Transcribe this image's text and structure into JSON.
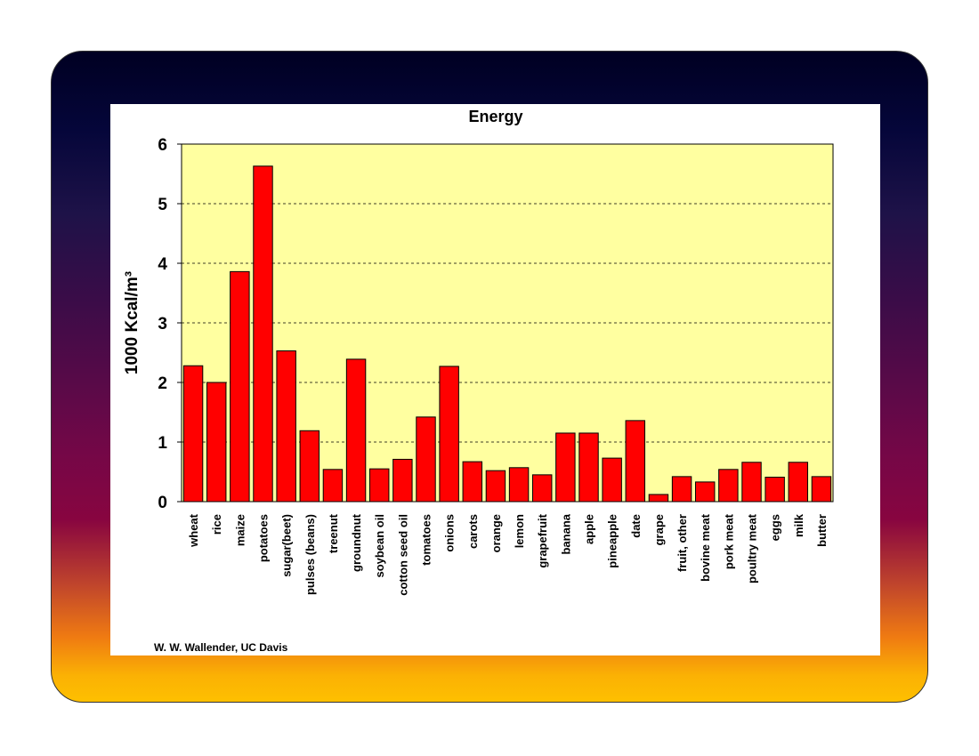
{
  "credit": "W. W. Wallender, UC Davis",
  "colors": {
    "bar_fill": "#ff0000",
    "plot_background": "#ffffa0"
  },
  "chart_data": {
    "type": "bar",
    "title": "Energy",
    "ylabel": "1000 Kcal/m³",
    "xlabel": "",
    "ylim": [
      0,
      6
    ],
    "yticks": [
      0,
      1,
      2,
      3,
      4,
      5,
      6
    ],
    "grid": true,
    "categories": [
      "wheat",
      "rice",
      "maize",
      "potatoes",
      "sugar(beet)",
      "pulses (beans)",
      "treenut",
      "groundnut",
      "soybean oil",
      "cotton seed oil",
      "tomatoes",
      "onions",
      "carots",
      "orange",
      "lemon",
      "grapefruit",
      "banana",
      "apple",
      "pineapple",
      "date",
      "grape",
      "fruit, other",
      "bovine meat",
      "pork meat",
      "poultry meat",
      "eggs",
      "milk",
      "butter"
    ],
    "values": [
      2.28,
      2.0,
      3.86,
      5.63,
      2.53,
      1.19,
      0.54,
      2.39,
      0.55,
      0.71,
      1.42,
      2.27,
      0.67,
      0.52,
      0.57,
      0.45,
      1.15,
      1.15,
      0.73,
      1.36,
      0.12,
      0.42,
      0.33,
      0.54,
      0.66,
      0.41,
      0.66,
      0.42
    ]
  }
}
